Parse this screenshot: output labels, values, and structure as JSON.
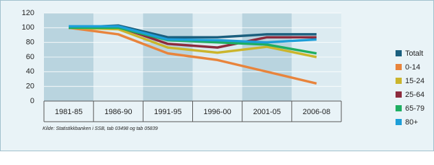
{
  "chart_data": {
    "type": "line",
    "categories": [
      "1981-85",
      "1986-90",
      "1991-95",
      "1996-00",
      "2001-05",
      "2006-08"
    ],
    "series": [
      {
        "name": "Totalt",
        "color": "#1b5f7e",
        "values": [
          100,
          103,
          87,
          87,
          91,
          91
        ]
      },
      {
        "name": "0-14",
        "color": "#e8843c",
        "values": [
          100,
          91,
          65,
          56,
          40,
          24
        ]
      },
      {
        "name": "15-24",
        "color": "#cbb52c",
        "values": [
          100,
          98,
          73,
          66,
          74,
          60
        ]
      },
      {
        "name": "25-64",
        "color": "#8c2b3d",
        "values": [
          100,
          101,
          78,
          73,
          87,
          87
        ]
      },
      {
        "name": "65-79",
        "color": "#1fae62",
        "values": [
          100,
          100,
          83,
          80,
          77,
          65
        ]
      },
      {
        "name": "80+",
        "color": "#1d9ed8",
        "values": [
          102,
          102,
          84,
          83,
          80,
          84
        ]
      }
    ],
    "ylim": [
      0,
      120
    ],
    "yticks": [
      0,
      20,
      40,
      60,
      80,
      100,
      120
    ],
    "grid": true,
    "legend": "right",
    "source": "Kilde: Statistikkbanken i SSB, tab 03498 og tab 05839"
  }
}
